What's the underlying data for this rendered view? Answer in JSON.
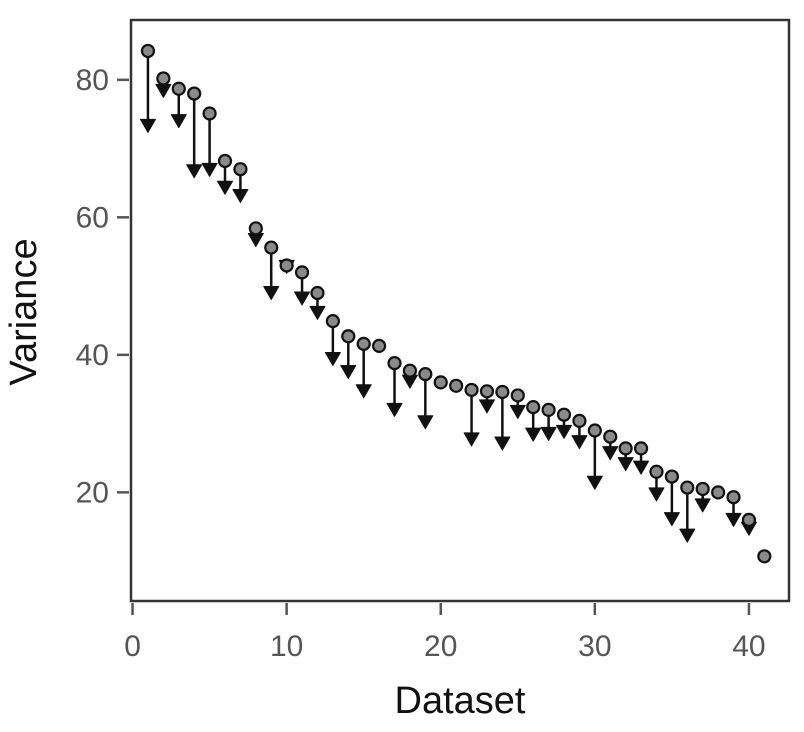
{
  "chart_data": {
    "type": "scatter",
    "title": "",
    "xlabel": "Dataset",
    "ylabel": "Variance",
    "xlim": [
      -0.1,
      42.6
    ],
    "ylim": [
      4.2,
      88.7
    ],
    "xticks": [
      0,
      10,
      20,
      30,
      40
    ],
    "yticks": [
      20,
      40,
      60,
      80
    ],
    "grid": false,
    "legend": "none",
    "colors": {
      "point_fill": "#8a8a8a",
      "point_stroke": "#111111",
      "arrow": "#111111",
      "frame": "#333333",
      "tick": "#555555"
    },
    "series": [
      {
        "role": "start",
        "marker": "circle",
        "x": [
          1,
          2,
          3,
          4,
          5,
          6,
          7,
          8,
          9,
          10,
          11,
          12,
          13,
          14,
          15,
          16,
          17,
          18,
          19,
          20,
          21,
          22,
          23,
          24,
          25,
          26,
          27,
          28,
          29,
          30,
          31,
          32,
          33,
          34,
          35,
          36,
          37,
          38,
          39,
          40,
          41
        ],
        "y": [
          84.2,
          80.2,
          78.7,
          78.0,
          75.1,
          68.2,
          67.0,
          58.4,
          55.6,
          53.0,
          52.0,
          49.0,
          44.9,
          42.7,
          41.6,
          41.3,
          38.8,
          37.7,
          37.2,
          36.0,
          35.5,
          34.9,
          34.7,
          34.6,
          34.1,
          32.4,
          32.0,
          31.3,
          30.4,
          29.0,
          28.1,
          26.4,
          26.4,
          23.0,
          22.3,
          20.7,
          20.5,
          20.0,
          19.3,
          16.0,
          10.7
        ]
      },
      {
        "role": "end",
        "marker": "arrowhead",
        "x": [
          1,
          2,
          3,
          4,
          5,
          6,
          7,
          8,
          9,
          10,
          11,
          12,
          13,
          14,
          15,
          16,
          17,
          18,
          19,
          20,
          21,
          22,
          23,
          24,
          25,
          26,
          27,
          28,
          29,
          30,
          31,
          32,
          33,
          34,
          35,
          36,
          37,
          38,
          39,
          40,
          41
        ],
        "y": [
          72.5,
          77.6,
          73.2,
          65.9,
          66.1,
          63.5,
          62.3,
          55.9,
          48.2,
          52.0,
          47.4,
          45.3,
          38.6,
          36.7,
          33.9,
          40.7,
          31.2,
          35.3,
          29.4,
          36.0,
          36.4,
          26.9,
          31.7,
          26.3,
          30.9,
          27.6,
          27.7,
          28.0,
          26.5,
          20.6,
          24.9,
          23.3,
          22.8,
          18.9,
          15.3,
          12.9,
          17.3,
          20.0,
          15.2,
          13.9,
          10.7
        ]
      }
    ]
  }
}
